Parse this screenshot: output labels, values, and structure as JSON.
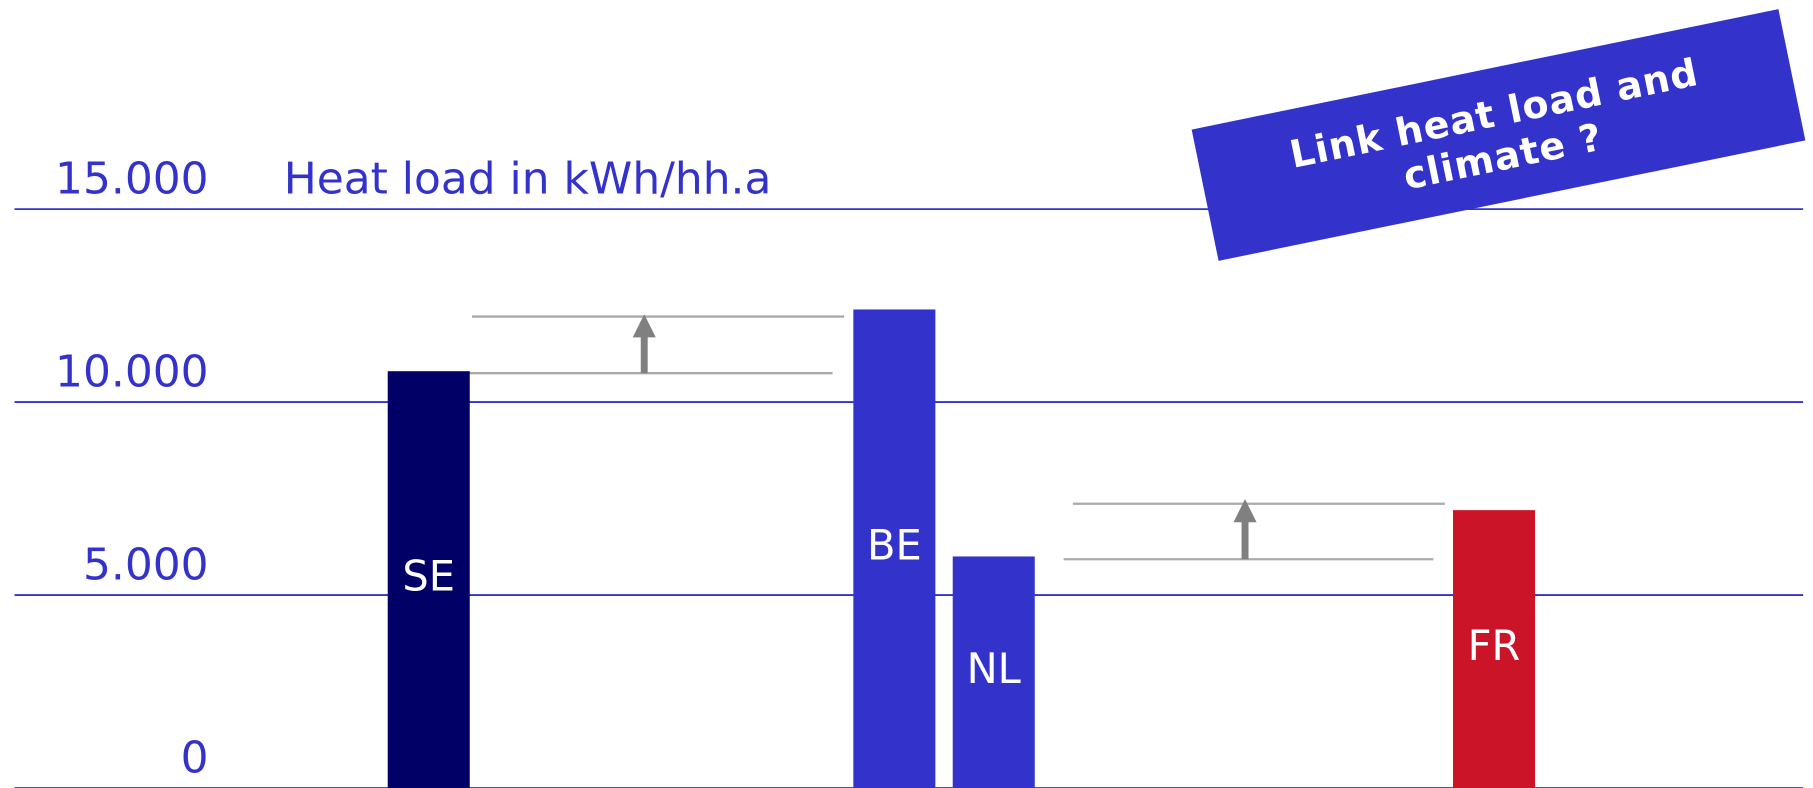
{
  "chart_data": {
    "type": "bar",
    "y_label": "Heat load in kWh/hh.a",
    "annotation": "Link heat load and climate ?",
    "categories": [
      "SE",
      "BE",
      "NL",
      "FR"
    ],
    "values": [
      10800,
      12400,
      6000,
      7200
    ],
    "colors": [
      "#000066",
      "#3333cc",
      "#3333cc",
      "#cc1429"
    ],
    "ylim": [
      0,
      15000
    ],
    "yticks": [
      0,
      {
        "value": 5000,
        "label": "5.000"
      },
      {
        "value": 10000,
        "label": "10.000"
      },
      {
        "value": 15000,
        "label": "15.000"
      }
    ],
    "grid": true,
    "grid_color": "#3333cc"
  }
}
